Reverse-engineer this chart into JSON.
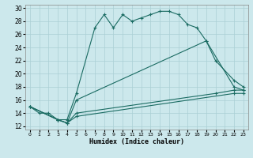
{
  "xlabel": "Humidex (Indice chaleur)",
  "bg_color": "#cce8ec",
  "grid_color": "#aacfd4",
  "line_color": "#1a6b62",
  "xlim": [
    -0.5,
    23.5
  ],
  "ylim": [
    11.5,
    30.5
  ],
  "xticks": [
    0,
    1,
    2,
    3,
    4,
    5,
    6,
    7,
    8,
    9,
    10,
    11,
    12,
    13,
    14,
    15,
    16,
    17,
    18,
    19,
    20,
    21,
    22,
    23
  ],
  "yticks": [
    12,
    14,
    16,
    18,
    20,
    22,
    24,
    26,
    28,
    30
  ],
  "series": [
    {
      "x": [
        0,
        1,
        2,
        3,
        4,
        5,
        7,
        8,
        9,
        10,
        11,
        12,
        13,
        14,
        15,
        16,
        17,
        18,
        19,
        22,
        23
      ],
      "y": [
        15,
        14,
        14,
        13,
        13,
        17,
        27,
        29,
        27,
        29,
        28,
        28.5,
        29,
        29.5,
        29.5,
        29,
        27.5,
        27,
        25,
        18,
        17.5
      ]
    },
    {
      "x": [
        0,
        3,
        4,
        5,
        19,
        20,
        22,
        23
      ],
      "y": [
        15,
        13,
        12.5,
        16,
        25,
        22,
        19,
        18
      ]
    },
    {
      "x": [
        0,
        3,
        4,
        5,
        20,
        22,
        23
      ],
      "y": [
        15,
        13,
        12.5,
        14,
        17,
        17.5,
        17.5
      ]
    },
    {
      "x": [
        0,
        3,
        4,
        5,
        22,
        23
      ],
      "y": [
        15,
        13,
        12.5,
        13.5,
        17,
        17
      ]
    }
  ]
}
